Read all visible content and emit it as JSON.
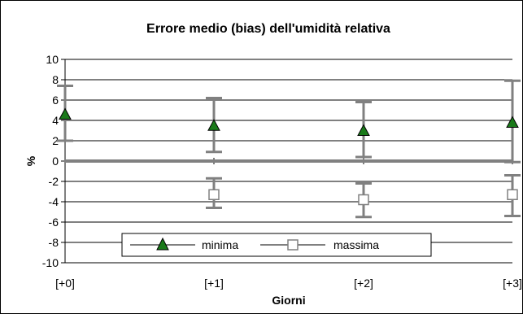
{
  "chart_data": {
    "type": "scatter",
    "title": "Errore medio (bias) dell'umidità relativa",
    "xlabel": "Giorni",
    "ylabel": "%",
    "categories": [
      "[+0]",
      "[+1]",
      "[+2]",
      "[+3]"
    ],
    "yticks": [
      "10",
      "8",
      "6",
      "4",
      "2",
      "0",
      "-2",
      "-4",
      "-6",
      "-8",
      "-10"
    ],
    "ylim": [
      -10,
      10
    ],
    "grid": true,
    "legend_position": "bottom-center",
    "series": [
      {
        "name": "minima",
        "marker": "triangle",
        "color": "#1a7a1a",
        "values": [
          4.6,
          3.5,
          3.0,
          3.8
        ],
        "error_low": [
          2.0,
          0.9,
          0.4,
          -0.1
        ],
        "error_high": [
          7.4,
          6.2,
          5.8,
          7.9
        ]
      },
      {
        "name": "massima",
        "marker": "square",
        "color": "#ffffff",
        "values": [
          null,
          -3.3,
          -3.8,
          -3.3
        ],
        "error_low": [
          null,
          -4.6,
          -5.5,
          -5.4
        ],
        "error_high": [
          null,
          -1.7,
          -2.2,
          -1.4
        ]
      }
    ]
  },
  "colors": {
    "error_bar": "#808080",
    "grid": "#000000",
    "zero_line": "#808080"
  }
}
